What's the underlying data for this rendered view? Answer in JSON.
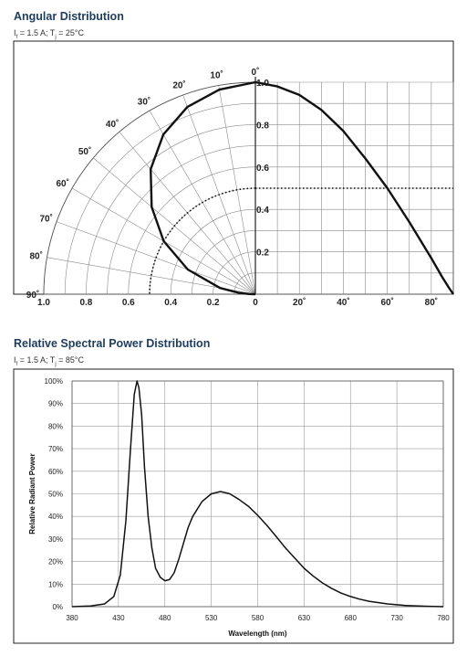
{
  "chart_data": [
    {
      "type": "line",
      "title": "Angular Distribution",
      "subtitle": {
        "i_label": "I",
        "i_sub": "f",
        "i_val": " = 1.5 A; T",
        "t_sub": "j",
        "t_val": " = 25°C"
      },
      "polar_angle_labels": [
        "0˚",
        "10˚",
        "20˚",
        "30˚",
        "40˚",
        "50˚",
        "60˚",
        "70˚",
        "80˚",
        "90˚"
      ],
      "radial_labels": [
        "0.2",
        "0.4",
        "0.6",
        "0.8",
        "1.0"
      ],
      "left_axis_labels": [
        "1.0",
        "0.8",
        "0.6",
        "0.4",
        "0.2",
        "0"
      ],
      "right_axis_labels": [
        "20˚",
        "40˚",
        "60˚",
        "80˚"
      ],
      "xlim": [
        0,
        90
      ],
      "ylim": [
        0,
        1.0
      ],
      "half_intensity": 0.5,
      "half_angle": 60,
      "series": [
        {
          "angle": [
            0,
            10,
            20,
            30,
            40,
            50,
            60,
            70,
            80,
            85,
            88,
            90
          ],
          "intensity": [
            1.0,
            0.98,
            0.94,
            0.87,
            0.77,
            0.64,
            0.5,
            0.34,
            0.17,
            0.08,
            0.03,
            0.0
          ]
        }
      ]
    },
    {
      "type": "line",
      "title": "Relative Spectral Power Distribution",
      "subtitle": {
        "i_label": "I",
        "i_sub": "f",
        "i_val": " = 1.5 A; T",
        "t_sub": "j",
        "t_val": " = 85°C"
      },
      "xlabel": "Wavelength (nm)",
      "ylabel": "Relative Radiant Power",
      "xlim": [
        380,
        780
      ],
      "ylim": [
        0,
        100
      ],
      "xticks": [
        380,
        430,
        480,
        530,
        580,
        630,
        680,
        730,
        780
      ],
      "yticks": [
        "0%",
        "10%",
        "20%",
        "30%",
        "40%",
        "50%",
        "60%",
        "70%",
        "80%",
        "90%",
        "100%"
      ],
      "series": [
        {
          "x": [
            380,
            400,
            415,
            425,
            432,
            438,
            443,
            447,
            450,
            452,
            455,
            458,
            462,
            466,
            470,
            475,
            480,
            485,
            490,
            495,
            500,
            505,
            510,
            520,
            530,
            540,
            550,
            560,
            570,
            580,
            590,
            600,
            610,
            620,
            630,
            640,
            650,
            660,
            670,
            680,
            690,
            700,
            720,
            740,
            760,
            780
          ],
          "y": [
            0,
            0.3,
            1.2,
            4.5,
            14,
            38,
            70,
            94,
            100,
            97,
            85,
            62,
            40,
            26,
            17,
            13,
            11.5,
            12,
            15,
            21,
            28,
            35,
            40,
            46.5,
            50,
            51,
            50,
            47.5,
            44.5,
            40.5,
            36,
            31,
            26,
            21.5,
            17,
            13.5,
            10.5,
            8,
            6,
            4.5,
            3.3,
            2.4,
            1.2,
            0.5,
            0.2,
            0
          ]
        }
      ]
    }
  ]
}
